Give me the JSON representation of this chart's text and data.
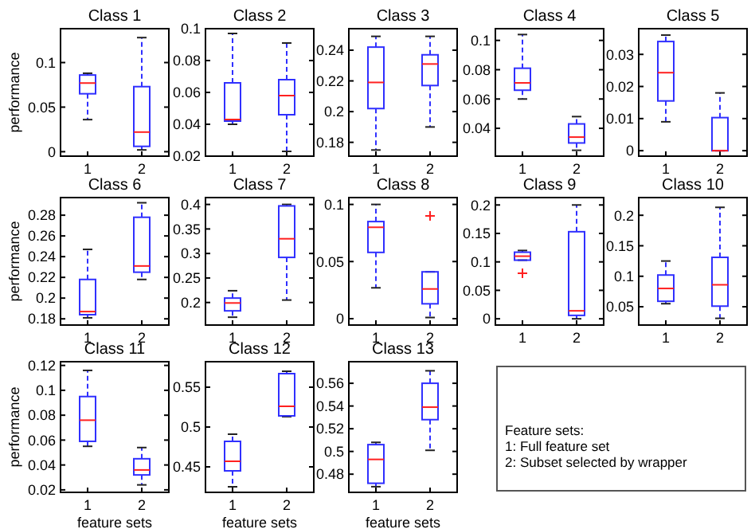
{
  "chart_data": [
    {
      "type": "box",
      "title": "Class 1",
      "ylabel": "performance",
      "categories": [
        "1",
        "2"
      ],
      "ylim": [
        -0.005,
        0.138
      ],
      "yticks": [
        0,
        0.05,
        0.1
      ],
      "boxes": [
        {
          "low": 0.036,
          "q1": 0.065,
          "median": 0.077,
          "q3": 0.086,
          "high": 0.088
        },
        {
          "low": 0.002,
          "q1": 0.006,
          "median": 0.022,
          "q3": 0.073,
          "high": 0.128
        }
      ]
    },
    {
      "type": "box",
      "title": "Class 2",
      "categories": [
        "1",
        "2"
      ],
      "ylim": [
        0.02,
        0.1
      ],
      "yticks": [
        0.02,
        0.04,
        0.06,
        0.08,
        0.1
      ],
      "boxes": [
        {
          "low": 0.04,
          "q1": 0.042,
          "median": 0.043,
          "q3": 0.066,
          "high": 0.097
        },
        {
          "low": 0.023,
          "q1": 0.046,
          "median": 0.058,
          "q3": 0.068,
          "high": 0.091
        }
      ]
    },
    {
      "type": "box",
      "title": "Class 3",
      "categories": [
        "1",
        "2"
      ],
      "ylim": [
        0.171,
        0.254
      ],
      "yticks": [
        0.18,
        0.2,
        0.22,
        0.24
      ],
      "boxes": [
        {
          "low": 0.175,
          "q1": 0.202,
          "median": 0.219,
          "q3": 0.242,
          "high": 0.249
        },
        {
          "low": 0.19,
          "q1": 0.217,
          "median": 0.231,
          "q3": 0.237,
          "high": 0.249
        }
      ]
    },
    {
      "type": "box",
      "title": "Class 4",
      "categories": [
        "1",
        "2"
      ],
      "ylim": [
        0.021,
        0.108
      ],
      "yticks": [
        0.04,
        0.06,
        0.08,
        0.1
      ],
      "boxes": [
        {
          "low": 0.06,
          "q1": 0.066,
          "median": 0.071,
          "q3": 0.081,
          "high": 0.104
        },
        {
          "low": 0.025,
          "q1": 0.03,
          "median": 0.034,
          "q3": 0.043,
          "high": 0.048
        }
      ]
    },
    {
      "type": "box",
      "title": "Class 5",
      "categories": [
        "1",
        "2"
      ],
      "ylim": [
        -0.0017,
        0.038
      ],
      "yticks": [
        0,
        0.01,
        0.02,
        0.03
      ],
      "boxes": [
        {
          "low": 0.009,
          "q1": 0.0155,
          "median": 0.0243,
          "q3": 0.034,
          "high": 0.036
        },
        {
          "low": 0,
          "q1": 0,
          "median": 0,
          "q3": 0.0103,
          "high": 0.018
        }
      ]
    },
    {
      "type": "box",
      "title": "Class 6",
      "ylabel": "performance",
      "categories": [
        "1",
        "2"
      ],
      "ylim": [
        0.174,
        0.297
      ],
      "yticks": [
        0.18,
        0.2,
        0.22,
        0.24,
        0.26,
        0.28
      ],
      "boxes": [
        {
          "low": 0.181,
          "q1": 0.184,
          "median": 0.187,
          "q3": 0.218,
          "high": 0.247
        },
        {
          "low": 0.218,
          "q1": 0.225,
          "median": 0.231,
          "q3": 0.278,
          "high": 0.292
        }
      ]
    },
    {
      "type": "box",
      "title": "Class 7",
      "categories": [
        "1",
        "2"
      ],
      "ylim": [
        0.154,
        0.414
      ],
      "yticks": [
        0.2,
        0.25,
        0.3,
        0.35,
        0.4
      ],
      "boxes": [
        {
          "low": 0.17,
          "q1": 0.183,
          "median": 0.199,
          "q3": 0.209,
          "high": 0.224
        },
        {
          "low": 0.205,
          "q1": 0.292,
          "median": 0.33,
          "q3": 0.397,
          "high": 0.4
        }
      ]
    },
    {
      "type": "box",
      "title": "Class 8",
      "categories": [
        "1",
        "2"
      ],
      "ylim": [
        -0.0056,
        0.106
      ],
      "yticks": [
        0,
        0.05,
        0.1
      ],
      "boxes": [
        {
          "low": 0.027,
          "q1": 0.058,
          "median": 0.08,
          "q3": 0.085,
          "high": 0.1
        },
        {
          "low": 0.001,
          "q1": 0.013,
          "median": 0.026,
          "q3": 0.041,
          "high": 0.041,
          "outliers": [
            0.09
          ]
        }
      ]
    },
    {
      "type": "box",
      "title": "Class 9",
      "categories": [
        "1",
        "2"
      ],
      "ylim": [
        -0.011,
        0.213
      ],
      "yticks": [
        0,
        0.05,
        0.1,
        0.15,
        0.2
      ],
      "boxes": [
        {
          "low": 0.103,
          "q1": 0.103,
          "median": 0.11,
          "q3": 0.117,
          "high": 0.12,
          "outliers": [
            0.08
          ]
        },
        {
          "low": 0,
          "q1": 0.006,
          "median": 0.014,
          "q3": 0.153,
          "high": 0.2
        }
      ]
    },
    {
      "type": "box",
      "title": "Class 10",
      "categories": [
        "1",
        "2"
      ],
      "ylim": [
        0.02,
        0.229
      ],
      "yticks": [
        0.05,
        0.1,
        0.15,
        0.2
      ],
      "boxes": [
        {
          "low": 0.055,
          "q1": 0.059,
          "median": 0.08,
          "q3": 0.102,
          "high": 0.125
        },
        {
          "low": 0.031,
          "q1": 0.051,
          "median": 0.086,
          "q3": 0.131,
          "high": 0.213
        }
      ]
    },
    {
      "type": "box",
      "title": "Class 11",
      "ylabel": "performance",
      "xlabel": "feature sets",
      "categories": [
        "1",
        "2"
      ],
      "ylim": [
        0.018,
        0.123
      ],
      "yticks": [
        0.02,
        0.04,
        0.06,
        0.08,
        0.1,
        0.12
      ],
      "boxes": [
        {
          "low": 0.055,
          "q1": 0.059,
          "median": 0.076,
          "q3": 0.095,
          "high": 0.116
        },
        {
          "low": 0.024,
          "q1": 0.032,
          "median": 0.036,
          "q3": 0.045,
          "high": 0.054
        }
      ]
    },
    {
      "type": "box",
      "title": "Class 12",
      "xlabel": "feature sets",
      "categories": [
        "1",
        "2"
      ],
      "ylim": [
        0.418,
        0.582
      ],
      "yticks": [
        0.45,
        0.5,
        0.55
      ],
      "boxes": [
        {
          "low": 0.425,
          "q1": 0.445,
          "median": 0.457,
          "q3": 0.482,
          "high": 0.491
        },
        {
          "low": 0.513,
          "q1": 0.514,
          "median": 0.526,
          "q3": 0.567,
          "high": 0.57
        }
      ]
    },
    {
      "type": "box",
      "title": "Class 13",
      "xlabel": "feature sets",
      "categories": [
        "1",
        "2"
      ],
      "ylim": [
        0.464,
        0.579
      ],
      "yticks": [
        0.48,
        0.5,
        0.52,
        0.54,
        0.56
      ],
      "boxes": [
        {
          "low": 0.469,
          "q1": 0.472,
          "median": 0.493,
          "q3": 0.506,
          "high": 0.508
        },
        {
          "low": 0.501,
          "q1": 0.528,
          "median": 0.539,
          "q3": 0.56,
          "high": 0.571
        }
      ]
    },
    {
      "type": "other",
      "annotations": [
        "Feature sets:",
        "1: Full feature set",
        "2:  Subset selected by wrapper"
      ]
    }
  ]
}
